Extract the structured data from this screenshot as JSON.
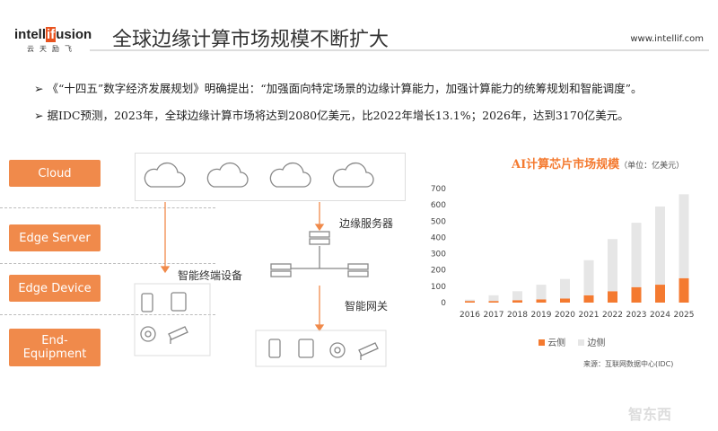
{
  "header": {
    "logo_a": "intell",
    "logo_b": "if",
    "logo_c": "usion",
    "logo_sub": "云天励飞",
    "title": "全球边缘计算市场规模不断扩大",
    "url": "www.intellif.com"
  },
  "bullets": [
    "《“十四五”数字经济发展规划》明确提出：“加强面向特定场景的边缘计算能力，加强计算能力的统筹规划和智能调度”。",
    "据IDC预测，2023年，全球边缘计算市场将达到2080亿美元，比2022年增长13.1%；2026年，达到3170亿美元。"
  ],
  "diagram": {
    "layers": [
      "Cloud",
      "Edge Server",
      "Edge Device",
      "End-Equipment"
    ],
    "edge_server_label": "边缘服务器",
    "terminal_label": "智能终端设备",
    "gateway_label": "智能网关",
    "accent": "#f08a4b"
  },
  "chart_data": {
    "type": "bar",
    "stacked": true,
    "title": "AI计算芯片市场规模",
    "unit": "（单位：亿美元）",
    "categories": [
      "2016",
      "2017",
      "2018",
      "2019",
      "2020",
      "2021",
      "2022",
      "2023",
      "2024",
      "2025"
    ],
    "series": [
      {
        "name": "云侧",
        "color": "#f47a30",
        "values": [
          10,
          10,
          15,
          20,
          25,
          45,
          70,
          95,
          110,
          150
        ]
      },
      {
        "name": "边侧",
        "color": "#e6e6e6",
        "values": [
          8,
          35,
          55,
          90,
          120,
          215,
          320,
          395,
          480,
          515
        ]
      }
    ],
    "yticks": [
      0,
      100,
      200,
      300,
      400,
      500,
      600,
      700
    ],
    "ylim": [
      0,
      700
    ],
    "grid": false,
    "legend": "bottom",
    "source": "来源：互联网数据中心(IDC)"
  },
  "watermark": "智东西"
}
